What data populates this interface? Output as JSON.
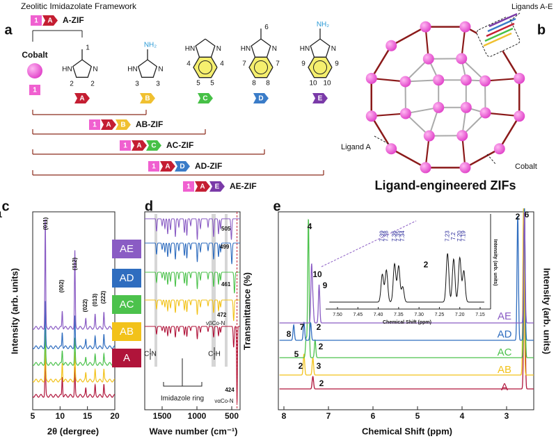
{
  "panel_a": {
    "label": "a",
    "title": "Zeolitic Imidazolate Framework",
    "key": {
      "metal": "1",
      "ligand": "A",
      "name": "A-ZIF"
    },
    "cobalt": {
      "name": "Cobalt",
      "badge": "1"
    },
    "ligands": [
      {
        "badge": "A",
        "hn": "HN",
        "n": "N",
        "numbers": [
          "1",
          "2",
          "2"
        ]
      },
      {
        "badge": "B",
        "hn": "HN",
        "n": "N",
        "substituent": "NH₂",
        "numbers": [
          "3",
          "3"
        ]
      },
      {
        "badge": "C",
        "hn": "HN",
        "n": "N",
        "numbers": [
          "4",
          "4",
          "5",
          "5"
        ]
      },
      {
        "badge": "D",
        "hn": "HN",
        "n": "N",
        "numbers": [
          "6",
          "7",
          "7",
          "8",
          "8"
        ]
      },
      {
        "badge": "E",
        "hn": "HN",
        "n": "N",
        "substituent": "NH₂",
        "numbers": [
          "9",
          "9",
          "10",
          "10"
        ]
      }
    ],
    "combos": [
      {
        "badges": [
          "1",
          "A",
          "B"
        ],
        "name": "AB-ZIF"
      },
      {
        "badges": [
          "1",
          "A",
          "C"
        ],
        "name": "AC-ZIF"
      },
      {
        "badges": [
          "1",
          "A",
          "D"
        ],
        "name": "AD-ZIF"
      },
      {
        "badges": [
          "1",
          "A",
          "E"
        ],
        "name": "AE-ZIF"
      }
    ]
  },
  "panel_b": {
    "label": "b",
    "ligands_label": "Ligands A-E",
    "ligand_label": "Ligand A",
    "cobalt_label": "Cobalt",
    "caption": "Ligand-engineered ZIFs"
  },
  "panel_c": {
    "label": "c",
    "y_label": "Intensity (arb. units)",
    "x_label": "2θ (dergree)",
    "x_ticks": [
      "5",
      "10",
      "15",
      "20"
    ],
    "peaks": [
      "(011)",
      "(002)",
      "(112)",
      "(022)",
      "(013)",
      "(222)"
    ],
    "legend": [
      "AE",
      "AD",
      "AC",
      "AB",
      "A"
    ]
  },
  "panel_d": {
    "label": "d",
    "y_label": "Transmittance (%)",
    "x_label": "Wave number (cm⁻¹)",
    "x_ticks": [
      "1500",
      "1000",
      "500"
    ],
    "annotations": [
      "505",
      "499",
      "461",
      "472",
      "νβCo-N",
      "424",
      "ναCo-N",
      "C-N",
      "C-H",
      "Imidazole ring"
    ]
  },
  "panel_e": {
    "label": "e",
    "y_label": "Intensity (arb. units)",
    "x_label": "Chemical Shift (ppm)",
    "x_ticks": [
      "8",
      "7",
      "6",
      "5",
      "4",
      "3"
    ],
    "peak_labels": [
      "4",
      "10",
      "9",
      "7",
      "2",
      "8",
      "2",
      "5",
      "2",
      "3",
      "2",
      "2",
      "6",
      "1"
    ],
    "curve_labels": [
      "AE",
      "AD",
      "AC",
      "AB",
      "A"
    ],
    "inset": {
      "x_label": "Chemical Shift (ppm)",
      "y_label": "Intensity (arb. units)",
      "x_ticks": [
        "7.50",
        "7.45",
        "7.40",
        "7.35",
        "7.30",
        "7.25",
        "7.20",
        "7.15"
      ],
      "peak_labels": [
        "7.39",
        "7.38",
        "7.36",
        "7.35",
        "7.34",
        "7.23",
        "7.2",
        "7.20",
        "7.19"
      ],
      "proton": "2"
    }
  }
}
